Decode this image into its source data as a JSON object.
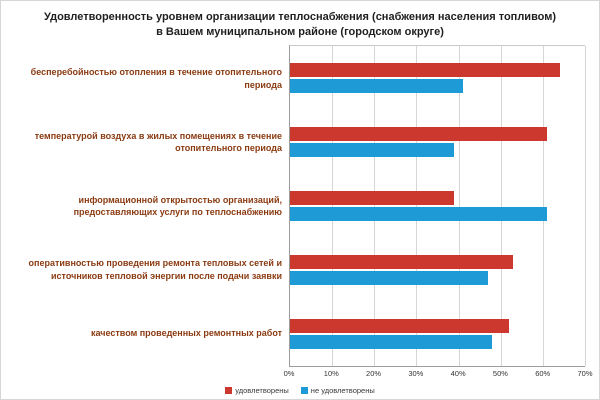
{
  "chart_data": {
    "type": "bar",
    "orientation": "horizontal",
    "title": "Удовлетворенность уровнем организации теплоснабжения (снабжения населения топливом) в Вашем муниципальном районе (городском округе)",
    "categories": [
      "бесперебойностью отопления в течение отопительного периода",
      "температурой воздуха в жилых помещениях в течение отопительного периода",
      "информационной открытостью организаций, предоставляющих услуги по теплоснабжению",
      "оперативностью проведения ремонта тепловых сетей и источников тепловой энергии после подачи заявки",
      "качеством проведенных ремонтных работ"
    ],
    "series": [
      {
        "name": "удовлетворены",
        "color": "#cc382e",
        "values": [
          64,
          61,
          39,
          53,
          52
        ]
      },
      {
        "name": "не удовлетворены",
        "color": "#1e9bd7",
        "values": [
          41,
          39,
          61,
          47,
          48
        ]
      }
    ],
    "xlim": [
      0,
      70
    ],
    "ticks": [
      "0%",
      "10%",
      "20%",
      "30%",
      "40%",
      "50%",
      "60%",
      "70%"
    ],
    "grid": true,
    "legend_position": "bottom"
  }
}
